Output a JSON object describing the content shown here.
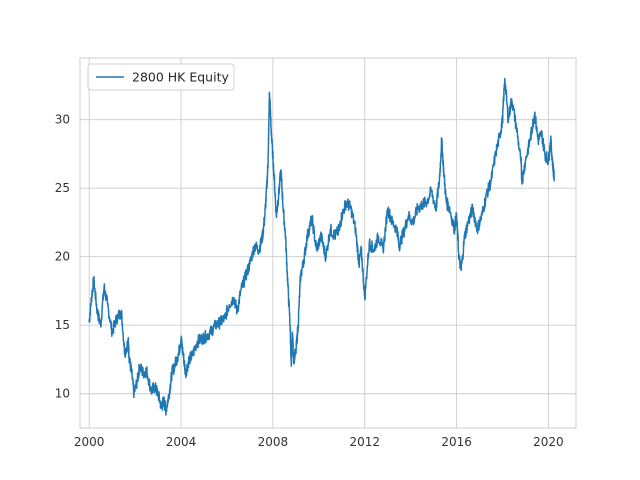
{
  "chart_data": {
    "type": "line",
    "title": "",
    "xlabel": "",
    "ylabel": "",
    "xlim": [
      1999.6,
      2021.2
    ],
    "ylim": [
      7.5,
      34.5
    ],
    "x_ticks": [
      2000,
      2004,
      2008,
      2012,
      2016,
      2020
    ],
    "x_tick_labels": [
      "2000",
      "2004",
      "2008",
      "2012",
      "2016",
      "2020"
    ],
    "y_ticks": [
      10,
      15,
      20,
      25,
      30
    ],
    "y_tick_labels": [
      "10",
      "15",
      "20",
      "25",
      "30"
    ],
    "grid": true,
    "legend": {
      "position": "top-left",
      "entries": [
        "2800 HK Equity"
      ]
    },
    "colors": {
      "series": "#1f77b4",
      "grid": "#cccccc",
      "axes": "#cccccc"
    },
    "series": [
      {
        "name": "2800 HK Equity",
        "x": [
          2000.0,
          2000.1,
          2000.2,
          2000.35,
          2000.5,
          2000.65,
          2000.8,
          2001.0,
          2001.2,
          2001.4,
          2001.55,
          2001.7,
          2001.75,
          2001.85,
          2001.95,
          2002.1,
          2002.2,
          2002.35,
          2002.5,
          2002.7,
          2002.85,
          2003.0,
          2003.15,
          2003.25,
          2003.35,
          2003.5,
          2003.6,
          2003.75,
          2003.9,
          2004.0,
          2004.1,
          2004.2,
          2004.35,
          2004.5,
          2004.7,
          2004.9,
          2005.1,
          2005.3,
          2005.5,
          2005.7,
          2005.9,
          2006.1,
          2006.3,
          2006.45,
          2006.6,
          2006.8,
          2007.0,
          2007.2,
          2007.4,
          2007.55,
          2007.65,
          2007.75,
          2007.8,
          2007.85,
          2007.95,
          2008.05,
          2008.15,
          2008.25,
          2008.35,
          2008.45,
          2008.55,
          2008.65,
          2008.75,
          2008.8,
          2008.85,
          2008.9,
          2009.0,
          2009.1,
          2009.2,
          2009.35,
          2009.5,
          2009.7,
          2009.9,
          2010.1,
          2010.3,
          2010.5,
          2010.7,
          2010.9,
          2011.0,
          2011.2,
          2011.4,
          2011.6,
          2011.75,
          2011.85,
          2012.0,
          2012.2,
          2012.4,
          2012.6,
          2012.8,
          2013.0,
          2013.2,
          2013.4,
          2013.5,
          2013.7,
          2013.9,
          2014.1,
          2014.3,
          2014.5,
          2014.7,
          2014.9,
          2015.1,
          2015.25,
          2015.35,
          2015.45,
          2015.55,
          2015.7,
          2015.9,
          2016.0,
          2016.1,
          2016.2,
          2016.35,
          2016.5,
          2016.7,
          2016.9,
          2017.1,
          2017.3,
          2017.5,
          2017.7,
          2017.9,
          2018.0,
          2018.1,
          2018.25,
          2018.4,
          2018.6,
          2018.8,
          2018.85,
          2019.0,
          2019.2,
          2019.3,
          2019.4,
          2019.55,
          2019.7,
          2019.85,
          2020.0,
          2020.1,
          2020.2,
          2020.25
        ],
        "y": [
          15.2,
          17.0,
          18.3,
          16.0,
          15.0,
          17.8,
          16.5,
          14.5,
          15.5,
          16.0,
          13.0,
          13.8,
          12.5,
          11.5,
          10.0,
          11.0,
          12.0,
          11.5,
          11.7,
          10.2,
          10.5,
          10.0,
          9.0,
          9.5,
          8.8,
          10.2,
          11.5,
          12.2,
          13.0,
          14.0,
          12.8,
          11.5,
          12.5,
          12.8,
          13.8,
          14.0,
          14.2,
          14.5,
          15.0,
          15.2,
          15.5,
          16.5,
          17.0,
          16.0,
          17.5,
          18.5,
          19.5,
          20.8,
          20.5,
          21.5,
          23.0,
          25.5,
          27.5,
          32.0,
          28.5,
          26.0,
          23.0,
          24.5,
          26.3,
          23.5,
          21.5,
          18.0,
          15.0,
          12.0,
          14.5,
          12.5,
          13.0,
          15.0,
          18.5,
          19.8,
          21.5,
          22.8,
          20.5,
          21.5,
          20.0,
          22.0,
          21.5,
          22.0,
          23.0,
          24.0,
          23.5,
          22.0,
          19.5,
          20.5,
          17.0,
          21.0,
          20.5,
          21.5,
          20.5,
          23.5,
          22.5,
          22.0,
          20.8,
          21.8,
          23.0,
          22.5,
          23.5,
          23.8,
          24.0,
          24.8,
          23.5,
          25.5,
          28.5,
          26.0,
          24.0,
          23.5,
          22.0,
          23.0,
          20.0,
          19.0,
          21.5,
          22.5,
          23.5,
          22.0,
          23.0,
          24.5,
          25.5,
          27.5,
          29.0,
          30.0,
          33.0,
          30.0,
          31.5,
          29.5,
          27.0,
          25.5,
          27.0,
          28.5,
          29.5,
          30.5,
          28.5,
          29.0,
          27.5,
          27.0,
          28.5,
          26.5,
          25.8
        ]
      }
    ]
  }
}
